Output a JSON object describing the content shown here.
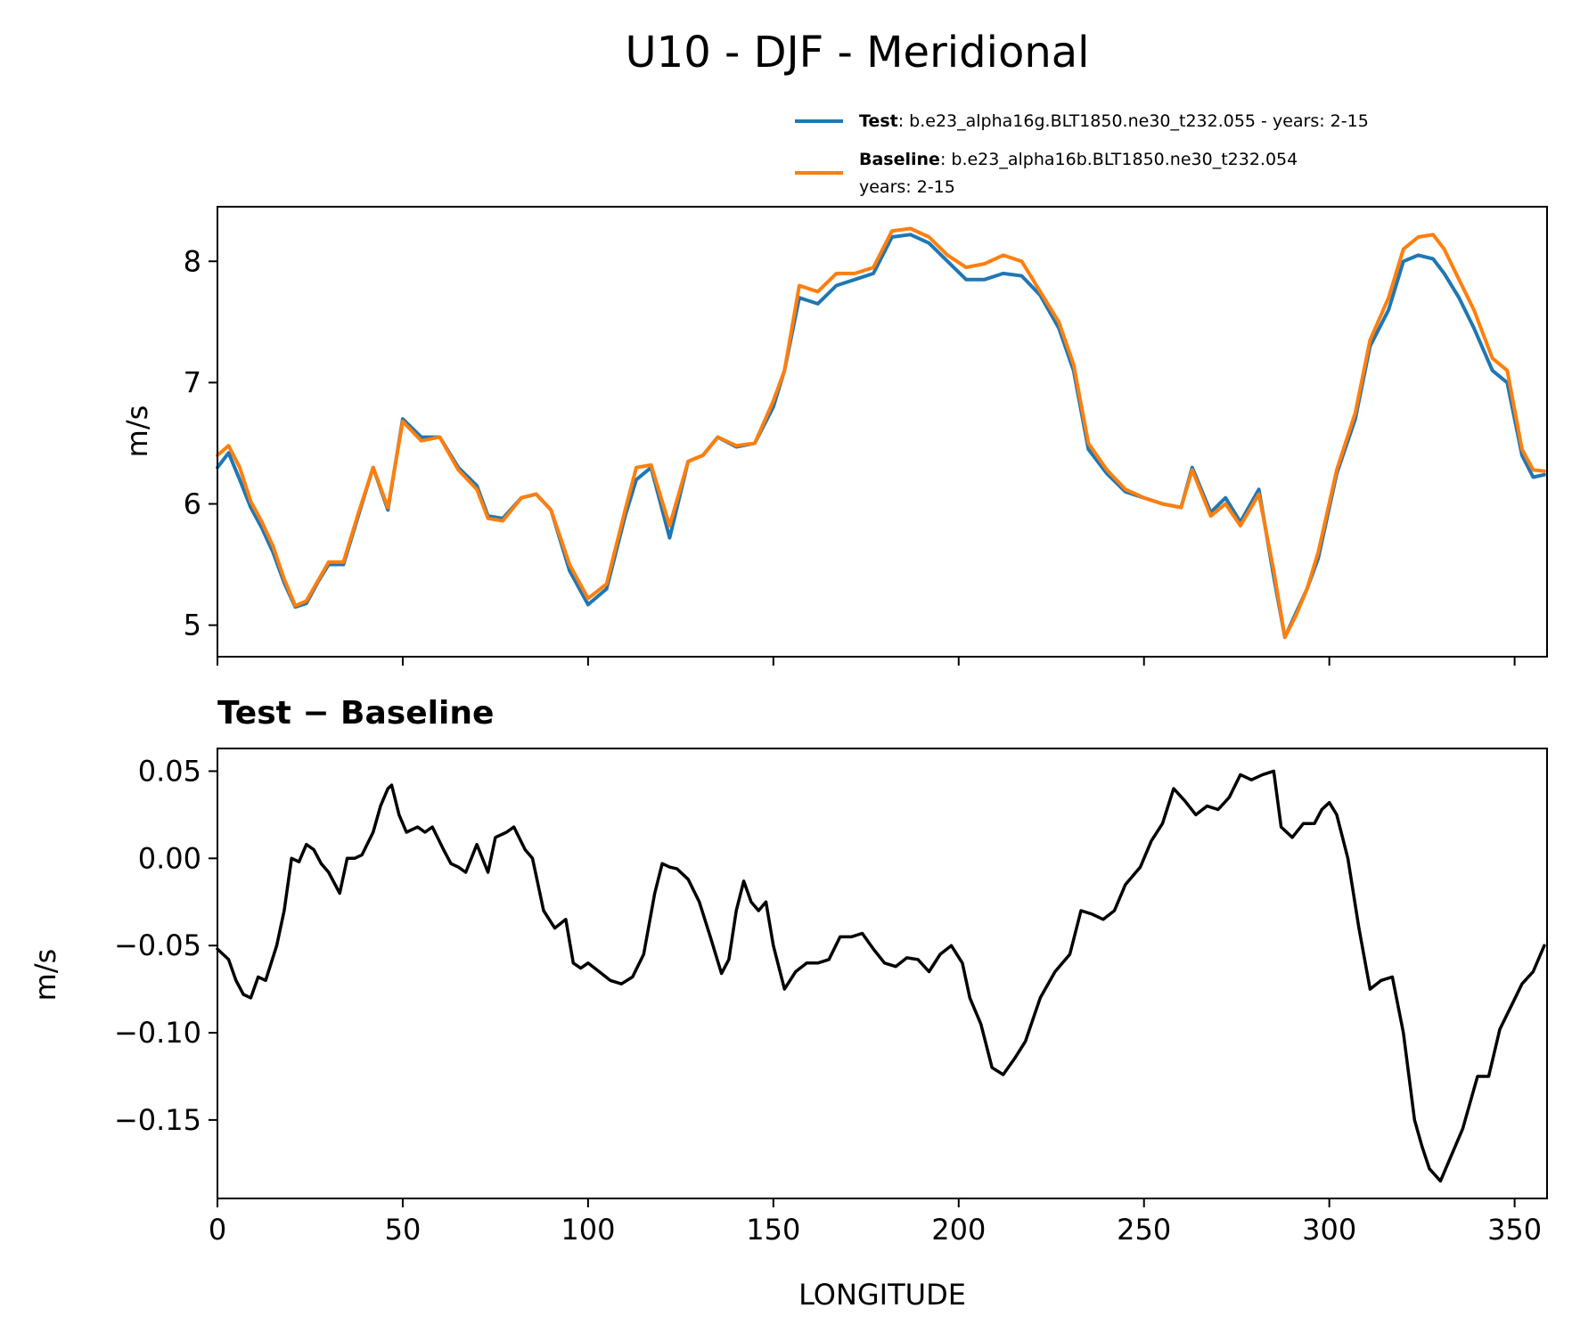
{
  "title": "U10 - DJF - Meridional",
  "legend": [
    {
      "bold": "Test",
      "sep": ": ",
      "line1": "b.e23_alpha16g.BLT1850.ne30_t232.055 - years: 2-15",
      "line2": "",
      "color": "#1f77b4"
    },
    {
      "bold": "Baseline",
      "sep": ": ",
      "line1": "b.e23_alpha16b.BLT1850.ne30_t232.054",
      "line2": "years: 2-15",
      "color": "#ff7f0e"
    }
  ],
  "chart_data": [
    {
      "type": "line",
      "xlabel": "",
      "ylabel": "m/s",
      "xlim": [
        0,
        358.75
      ],
      "ylim": [
        4.74,
        8.45
      ],
      "xticks": [
        0,
        50,
        100,
        150,
        200,
        250,
        300,
        350
      ],
      "yticks": [
        5,
        6,
        7,
        8
      ],
      "ytick_labels": [
        "5",
        "6",
        "7",
        "8"
      ],
      "x": [
        0,
        3,
        6,
        9,
        12,
        15,
        18,
        21,
        24,
        27,
        30,
        34,
        38,
        42,
        46,
        50,
        55,
        60,
        65,
        70,
        73,
        77,
        82,
        86,
        90,
        95,
        100,
        105,
        110,
        113,
        117,
        122,
        127,
        131,
        135,
        140,
        145,
        150,
        153,
        157,
        162,
        167,
        172,
        177,
        182,
        187,
        192,
        197,
        202,
        207,
        212,
        217,
        222,
        227,
        231,
        235,
        240,
        245,
        250,
        255,
        260,
        263,
        268,
        272,
        276,
        281,
        285,
        288,
        291,
        294,
        297,
        302,
        307,
        311,
        316,
        320,
        324,
        328,
        331,
        335,
        339,
        344,
        348,
        352,
        355,
        358
      ],
      "series": [
        {
          "name": "Test",
          "color": "#1f77b4",
          "values": [
            6.3,
            6.42,
            6.2,
            5.97,
            5.8,
            5.6,
            5.35,
            5.15,
            5.18,
            5.35,
            5.5,
            5.5,
            5.9,
            6.3,
            5.95,
            6.7,
            6.55,
            6.55,
            6.3,
            6.15,
            5.9,
            5.88,
            6.05,
            6.08,
            5.95,
            5.45,
            5.17,
            5.3,
            5.9,
            6.2,
            6.3,
            5.72,
            6.35,
            6.4,
            6.55,
            6.47,
            6.5,
            6.8,
            7.1,
            7.7,
            7.65,
            7.8,
            7.85,
            7.9,
            8.2,
            8.22,
            8.15,
            8.0,
            7.85,
            7.85,
            7.9,
            7.88,
            7.72,
            7.45,
            7.1,
            6.45,
            6.25,
            6.1,
            6.05,
            6.0,
            5.97,
            6.3,
            5.93,
            6.05,
            5.85,
            6.12,
            5.4,
            4.9,
            5.1,
            5.3,
            5.55,
            6.25,
            6.7,
            7.3,
            7.6,
            8.0,
            8.05,
            8.02,
            7.9,
            7.7,
            7.45,
            7.1,
            7.0,
            6.4,
            6.22,
            6.24
          ]
        },
        {
          "name": "Baseline",
          "color": "#ff7f0e",
          "values": [
            6.4,
            6.48,
            6.3,
            6.02,
            5.85,
            5.65,
            5.38,
            5.16,
            5.2,
            5.36,
            5.52,
            5.52,
            5.92,
            6.3,
            5.97,
            6.68,
            6.52,
            6.55,
            6.28,
            6.12,
            5.88,
            5.86,
            6.05,
            6.08,
            5.95,
            5.5,
            5.22,
            5.34,
            5.95,
            6.3,
            6.32,
            5.82,
            6.35,
            6.4,
            6.55,
            6.48,
            6.5,
            6.85,
            7.1,
            7.8,
            7.75,
            7.9,
            7.9,
            7.95,
            8.25,
            8.27,
            8.2,
            8.05,
            7.95,
            7.98,
            8.05,
            8.0,
            7.75,
            7.5,
            7.15,
            6.5,
            6.28,
            6.12,
            6.05,
            6.0,
            5.97,
            6.28,
            5.9,
            6.0,
            5.82,
            6.08,
            5.45,
            4.9,
            5.08,
            5.3,
            5.6,
            6.28,
            6.75,
            7.35,
            7.7,
            8.1,
            8.2,
            8.22,
            8.1,
            7.85,
            7.6,
            7.2,
            7.1,
            6.45,
            6.28,
            6.27
          ]
        }
      ]
    },
    {
      "type": "line",
      "subtitle_bold": "Test − Baseline",
      "xlabel": "LONGITUDE",
      "ylabel": "m/s",
      "xlim": [
        0,
        358.75
      ],
      "ylim": [
        -0.195,
        0.063
      ],
      "xticks": [
        0,
        50,
        100,
        150,
        200,
        250,
        300,
        350
      ],
      "xtick_labels": [
        "0",
        "50",
        "100",
        "150",
        "200",
        "250",
        "300",
        "350"
      ],
      "yticks": [
        0.05,
        0.0,
        -0.05,
        -0.1,
        -0.15
      ],
      "ytick_labels": [
        "0.05",
        "0.00",
        "−0.05",
        "−0.10",
        "−0.15"
      ],
      "x": [
        0,
        3,
        5,
        7,
        9,
        11,
        13,
        16,
        18,
        20,
        22,
        24,
        26,
        28,
        30,
        33,
        35,
        37,
        39,
        42,
        44,
        46,
        47,
        49,
        51,
        54,
        56,
        58,
        61,
        63,
        65,
        67,
        70,
        73,
        75,
        78,
        80,
        83,
        85,
        88,
        91,
        94,
        96,
        98,
        100,
        103,
        106,
        109,
        112,
        115,
        118,
        120,
        122,
        124,
        127,
        130,
        133,
        136,
        138,
        140,
        142,
        144,
        146,
        148,
        150,
        153,
        156,
        159,
        162,
        165,
        168,
        171,
        174,
        177,
        180,
        183,
        186,
        189,
        192,
        195,
        198,
        201,
        203,
        206,
        209,
        212,
        215,
        218,
        222,
        226,
        230,
        233,
        236,
        239,
        242,
        245,
        249,
        252,
        255,
        258,
        261,
        264,
        267,
        270,
        273,
        276,
        279,
        282,
        285,
        287,
        290,
        293,
        296,
        298,
        300,
        302,
        305,
        308,
        311,
        314,
        317,
        320,
        323,
        325,
        327,
        330,
        333,
        336,
        338,
        340,
        343,
        346,
        349,
        352,
        355,
        358
      ],
      "series": [
        {
          "name": "",
          "color": "#000000",
          "values": [
            -0.052,
            -0.058,
            -0.07,
            -0.078,
            -0.08,
            -0.068,
            -0.07,
            -0.05,
            -0.03,
            0.0,
            -0.002,
            0.008,
            0.005,
            -0.003,
            -0.008,
            -0.02,
            0.0,
            0.0,
            0.002,
            0.015,
            0.03,
            0.04,
            0.042,
            0.025,
            0.015,
            0.018,
            0.015,
            0.018,
            0.005,
            -0.003,
            -0.005,
            -0.008,
            0.008,
            -0.008,
            0.012,
            0.015,
            0.018,
            0.005,
            0.0,
            -0.03,
            -0.04,
            -0.035,
            -0.06,
            -0.063,
            -0.06,
            -0.065,
            -0.07,
            -0.072,
            -0.068,
            -0.055,
            -0.02,
            -0.003,
            -0.005,
            -0.006,
            -0.012,
            -0.025,
            -0.045,
            -0.066,
            -0.058,
            -0.03,
            -0.013,
            -0.025,
            -0.03,
            -0.025,
            -0.05,
            -0.075,
            -0.065,
            -0.06,
            -0.06,
            -0.058,
            -0.045,
            -0.045,
            -0.043,
            -0.052,
            -0.06,
            -0.062,
            -0.057,
            -0.058,
            -0.065,
            -0.055,
            -0.05,
            -0.06,
            -0.08,
            -0.095,
            -0.12,
            -0.124,
            -0.115,
            -0.105,
            -0.08,
            -0.065,
            -0.055,
            -0.03,
            -0.032,
            -0.035,
            -0.03,
            -0.015,
            -0.005,
            0.01,
            0.02,
            0.04,
            0.033,
            0.025,
            0.03,
            0.028,
            0.035,
            0.048,
            0.045,
            0.048,
            0.05,
            0.018,
            0.012,
            0.02,
            0.02,
            0.028,
            0.032,
            0.025,
            0.0,
            -0.04,
            -0.075,
            -0.07,
            -0.068,
            -0.1,
            -0.15,
            -0.165,
            -0.178,
            -0.185,
            -0.17,
            -0.155,
            -0.14,
            -0.125,
            -0.125,
            -0.098,
            -0.085,
            -0.072,
            -0.065,
            -0.05
          ]
        }
      ]
    }
  ]
}
